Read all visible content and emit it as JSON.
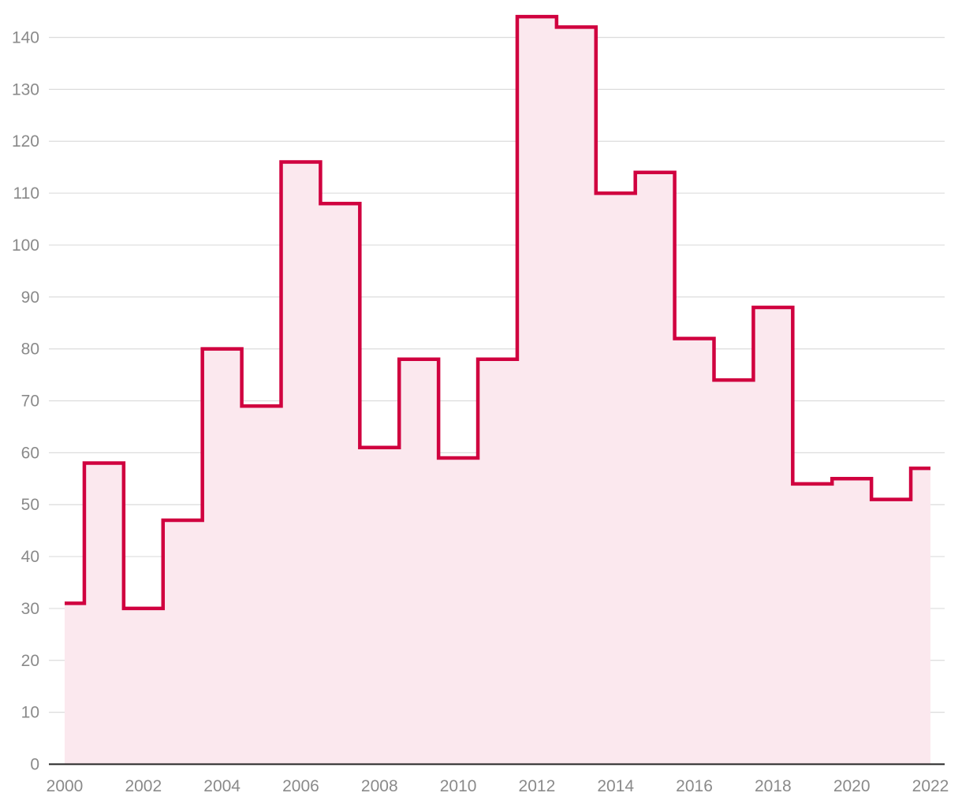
{
  "chart_data": {
    "type": "area",
    "step": "center",
    "x": [
      2000,
      2001,
      2002,
      2003,
      2004,
      2005,
      2006,
      2007,
      2008,
      2009,
      2010,
      2011,
      2012,
      2013,
      2014,
      2015,
      2016,
      2017,
      2018,
      2019,
      2020,
      2021,
      2022
    ],
    "values": [
      31,
      58,
      30,
      47,
      80,
      69,
      116,
      108,
      61,
      78,
      59,
      78,
      144,
      142,
      110,
      114,
      82,
      74,
      88,
      54,
      55,
      51,
      57
    ],
    "title": "",
    "xlabel": "",
    "ylabel": "",
    "xlim": [
      2000,
      2022
    ],
    "ylim": [
      0,
      140
    ],
    "x_ticks": [
      "2000",
      "2002",
      "2004",
      "2006",
      "2008",
      "2010",
      "2012",
      "2014",
      "2016",
      "2018",
      "2020",
      "2022"
    ],
    "y_ticks": [
      "0",
      "10",
      "20",
      "30",
      "40",
      "50",
      "60",
      "70",
      "80",
      "90",
      "100",
      "110",
      "120",
      "130",
      "140"
    ],
    "grid": true,
    "legend": "none",
    "colors": {
      "line": "#d0003f",
      "fill": "#fbe8ee",
      "grid": "#dcdcdc",
      "axis": "#222222",
      "tick_text": "#8a8a8a"
    }
  }
}
